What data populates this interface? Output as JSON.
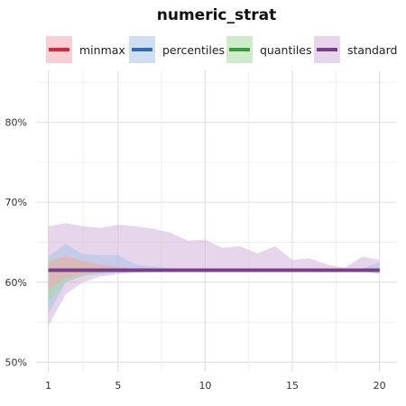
{
  "chart_data": {
    "type": "line",
    "title": "numeric_strat",
    "xlabel": "",
    "ylabel": "",
    "x": [
      1,
      2,
      3,
      4,
      5,
      6,
      7,
      8,
      9,
      10,
      11,
      12,
      13,
      14,
      15,
      16,
      17,
      18,
      19,
      20
    ],
    "x_ticks": [
      1,
      5,
      10,
      15,
      20
    ],
    "y_ticks": [
      {
        "value": 0.5,
        "label": "50%"
      },
      {
        "value": 0.6,
        "label": "60%"
      },
      {
        "value": 0.7,
        "label": "70%"
      },
      {
        "value": 0.8,
        "label": "80%"
      }
    ],
    "xlim": [
      0.3,
      21
    ],
    "ylim": [
      0.488,
      0.865
    ],
    "grid": true,
    "legend_position": "top",
    "series": [
      {
        "name": "minmax",
        "color": "#d62839",
        "band_color": "#f4a6b0",
        "values": [
          0.615,
          0.615,
          0.615,
          0.615,
          0.615,
          0.615,
          0.615,
          0.615,
          0.615,
          0.615,
          0.615,
          0.615,
          0.615,
          0.615,
          0.615,
          0.615,
          0.615,
          0.615,
          0.615,
          0.615
        ],
        "upper": [
          0.625,
          0.633,
          0.627,
          0.622,
          0.619,
          0.617,
          0.616,
          0.616,
          0.615,
          0.615,
          0.615,
          0.615,
          0.615,
          0.615,
          0.615,
          0.615,
          0.615,
          0.615,
          0.615,
          0.615
        ],
        "lower": [
          0.59,
          0.605,
          0.61,
          0.612,
          0.614,
          0.615,
          0.615,
          0.615,
          0.615,
          0.615,
          0.615,
          0.615,
          0.615,
          0.615,
          0.615,
          0.615,
          0.615,
          0.615,
          0.615,
          0.615
        ]
      },
      {
        "name": "percentiles",
        "color": "#2f6db5",
        "band_color": "#a9c2e6",
        "values": [
          0.615,
          0.615,
          0.615,
          0.615,
          0.615,
          0.615,
          0.615,
          0.615,
          0.615,
          0.615,
          0.615,
          0.615,
          0.615,
          0.615,
          0.615,
          0.615,
          0.615,
          0.615,
          0.615,
          0.615
        ],
        "upper": [
          0.632,
          0.648,
          0.635,
          0.634,
          0.634,
          0.622,
          0.62,
          0.617,
          0.616,
          0.615,
          0.615,
          0.615,
          0.615,
          0.615,
          0.615,
          0.615,
          0.615,
          0.615,
          0.617,
          0.625
        ],
        "lower": [
          0.56,
          0.6,
          0.608,
          0.61,
          0.612,
          0.613,
          0.614,
          0.615,
          0.615,
          0.615,
          0.615,
          0.615,
          0.615,
          0.615,
          0.615,
          0.615,
          0.615,
          0.615,
          0.614,
          0.61
        ]
      },
      {
        "name": "quantiles",
        "color": "#3a9a3c",
        "band_color": "#a8dba0",
        "values": [
          0.615,
          0.615,
          0.615,
          0.615,
          0.615,
          0.615,
          0.615,
          0.615,
          0.615,
          0.615,
          0.615,
          0.615,
          0.615,
          0.615,
          0.615,
          0.615,
          0.615,
          0.615,
          0.615,
          0.615
        ],
        "upper": [
          0.628,
          0.63,
          0.625,
          0.62,
          0.618,
          0.617,
          0.616,
          0.615,
          0.615,
          0.615,
          0.615,
          0.615,
          0.615,
          0.615,
          0.615,
          0.615,
          0.615,
          0.615,
          0.615,
          0.615
        ],
        "lower": [
          0.575,
          0.6,
          0.608,
          0.612,
          0.614,
          0.615,
          0.615,
          0.615,
          0.615,
          0.615,
          0.615,
          0.615,
          0.615,
          0.615,
          0.615,
          0.615,
          0.615,
          0.615,
          0.615,
          0.615
        ]
      },
      {
        "name": "standard",
        "color": "#7b3c8c",
        "band_color": "#d3b5db",
        "values": [
          0.615,
          0.615,
          0.615,
          0.615,
          0.615,
          0.615,
          0.615,
          0.615,
          0.615,
          0.615,
          0.615,
          0.615,
          0.615,
          0.615,
          0.615,
          0.615,
          0.615,
          0.615,
          0.615,
          0.615
        ],
        "upper": [
          0.67,
          0.674,
          0.67,
          0.668,
          0.672,
          0.67,
          0.667,
          0.662,
          0.652,
          0.653,
          0.643,
          0.645,
          0.636,
          0.645,
          0.628,
          0.63,
          0.622,
          0.618,
          0.632,
          0.628
        ],
        "lower": [
          0.545,
          0.585,
          0.6,
          0.607,
          0.61,
          0.612,
          0.613,
          0.614,
          0.614,
          0.614,
          0.614,
          0.614,
          0.614,
          0.614,
          0.614,
          0.614,
          0.614,
          0.614,
          0.614,
          0.614
        ]
      }
    ]
  }
}
